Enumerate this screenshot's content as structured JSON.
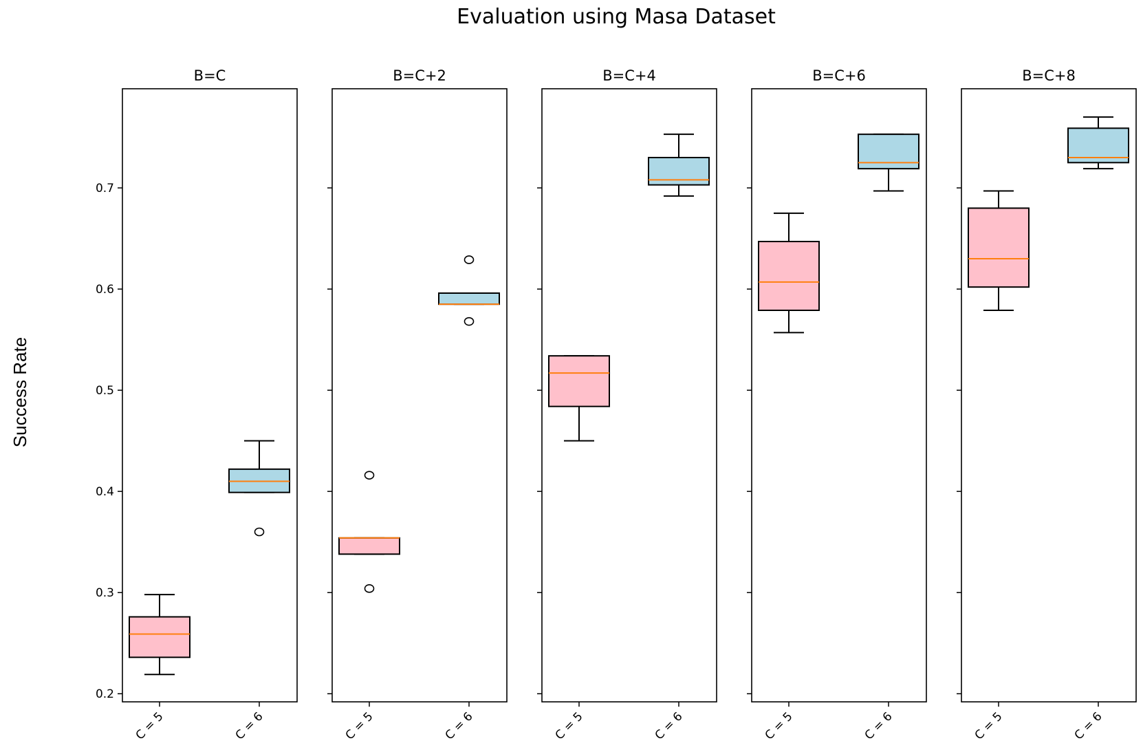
{
  "chart_data": {
    "type": "boxplot",
    "title": "Evaluation using Masa Dataset",
    "ylabel": "Success Rate",
    "ylim": [
      0.192,
      0.798
    ],
    "yticks": [
      0.2,
      0.3,
      0.4,
      0.5,
      0.6,
      0.7
    ],
    "ytick_labels": [
      "0.2",
      "0.3",
      "0.4",
      "0.5",
      "0.6",
      "0.7"
    ],
    "categories": [
      "C = 5",
      "C = 6"
    ],
    "box_colors": [
      "#ffc0cb",
      "#add8e6"
    ],
    "median_color": "#ff7f0e",
    "grid": false,
    "panels": [
      {
        "title": "B=C",
        "boxes": [
          {
            "category": "C = 5",
            "whisker_low": 0.219,
            "q1": 0.236,
            "median": 0.259,
            "q3": 0.276,
            "whisker_high": 0.298,
            "outliers": []
          },
          {
            "category": "C = 6",
            "whisker_low": 0.399,
            "q1": 0.399,
            "median": 0.41,
            "q3": 0.422,
            "whisker_high": 0.45,
            "outliers": [
              0.36
            ]
          }
        ]
      },
      {
        "title": "B=C+2",
        "boxes": [
          {
            "category": "C = 5",
            "whisker_low": 0.338,
            "q1": 0.338,
            "median": 0.354,
            "q3": 0.354,
            "whisker_high": 0.354,
            "outliers": [
              0.416,
              0.304
            ]
          },
          {
            "category": "C = 6",
            "whisker_low": 0.585,
            "q1": 0.585,
            "median": 0.585,
            "q3": 0.596,
            "whisker_high": 0.596,
            "outliers": [
              0.629,
              0.568
            ]
          }
        ]
      },
      {
        "title": "B=C+4",
        "boxes": [
          {
            "category": "C = 5",
            "whisker_low": 0.45,
            "q1": 0.484,
            "median": 0.517,
            "q3": 0.534,
            "whisker_high": 0.534,
            "outliers": []
          },
          {
            "category": "C = 6",
            "whisker_low": 0.692,
            "q1": 0.703,
            "median": 0.708,
            "q3": 0.73,
            "whisker_high": 0.753,
            "outliers": []
          }
        ]
      },
      {
        "title": "B=C+6",
        "boxes": [
          {
            "category": "C = 5",
            "whisker_low": 0.557,
            "q1": 0.579,
            "median": 0.607,
            "q3": 0.647,
            "whisker_high": 0.675,
            "outliers": []
          },
          {
            "category": "C = 6",
            "whisker_low": 0.697,
            "q1": 0.719,
            "median": 0.725,
            "q3": 0.753,
            "whisker_high": 0.753,
            "outliers": []
          }
        ]
      },
      {
        "title": "B=C+8",
        "boxes": [
          {
            "category": "C = 5",
            "whisker_low": 0.579,
            "q1": 0.602,
            "median": 0.63,
            "q3": 0.68,
            "whisker_high": 0.697,
            "outliers": []
          },
          {
            "category": "C = 6",
            "whisker_low": 0.719,
            "q1": 0.725,
            "median": 0.73,
            "q3": 0.759,
            "whisker_high": 0.77,
            "outliers": []
          }
        ]
      }
    ]
  }
}
